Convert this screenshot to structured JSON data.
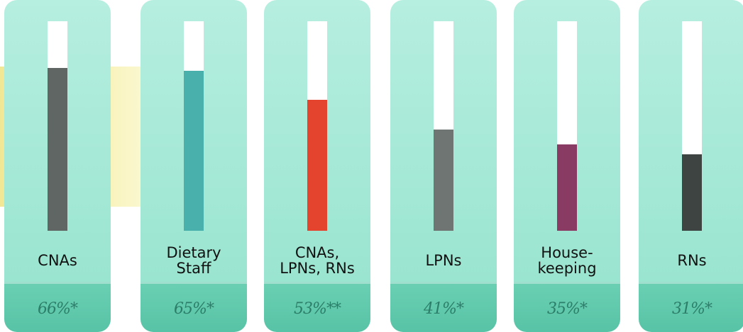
{
  "chart_data": {
    "type": "bar",
    "categories": [
      "CNAs",
      "Dietary\nStaff",
      "CNAs,\nLPNs, RNs",
      "LPNs",
      "House-\nkeeping",
      "RNs"
    ],
    "values": [
      66,
      65,
      53,
      41,
      35,
      31
    ],
    "value_labels": [
      "66%*",
      "65%*",
      "53%**",
      "41%*",
      "35%*",
      "31%*"
    ],
    "unit": "%",
    "ylim": [
      0,
      85
    ],
    "grid": false,
    "colors": [
      "#5f6663",
      "#4ab0ab",
      "#e4432d",
      "#6f7572",
      "#8a3b63",
      "#3e4442"
    ]
  }
}
